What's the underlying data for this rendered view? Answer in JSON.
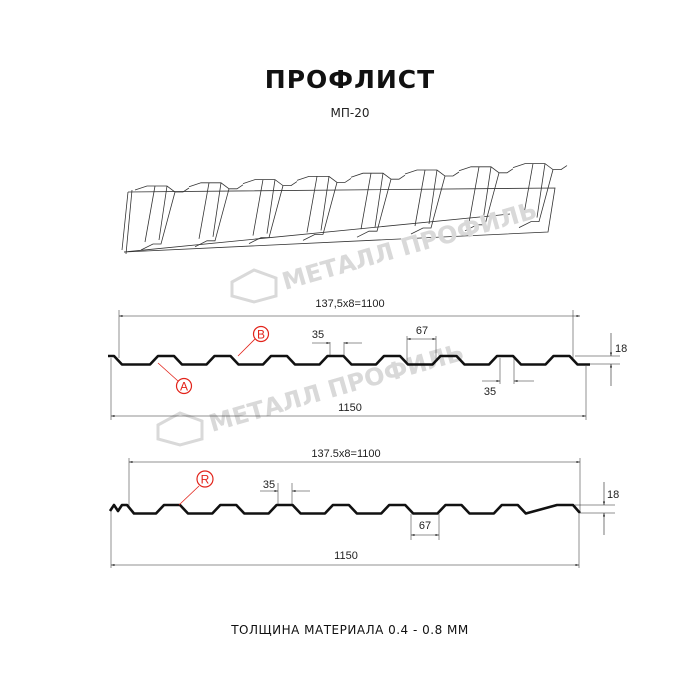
{
  "title": "ПРОФЛИСТ",
  "subtitle": "МП-20",
  "footer": "ТОЛЩИНА МАТЕРИАЛА 0.4 - 0.8 ММ",
  "watermark": "МЕТАЛЛ ПРОФИЛЬ",
  "colors": {
    "profile": "#111111",
    "callout": "#e2231a",
    "dimension": "#222222",
    "watermark": "#d9d9d9"
  },
  "drawing1": {
    "top_dim": "137,5x8=1100",
    "bottom_dim": "1150",
    "rib_top": "35",
    "rib_gap": "67",
    "rib_bottom": "35",
    "height": "18",
    "callout_b": "B",
    "callout_a": "A"
  },
  "drawing2": {
    "top_dim": "137.5x8=1100",
    "bottom_dim": "1150",
    "rib_top": "35",
    "rib_gap": "67",
    "height": "18",
    "callout_r": "R"
  }
}
